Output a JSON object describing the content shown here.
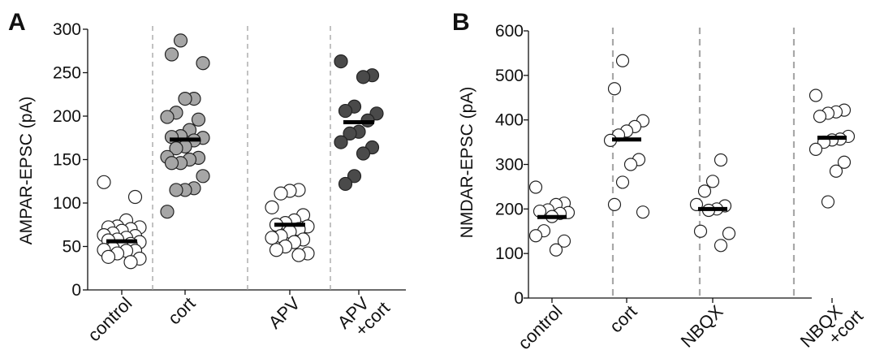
{
  "panels": [
    {
      "letter": "A",
      "chart_data": {
        "type": "scatter",
        "title": "",
        "xlabel": "",
        "ylabel": "AMPAR-EPSC (pA)",
        "ylim": [
          0,
          300
        ],
        "yticks": [
          0,
          50,
          100,
          150,
          200,
          250,
          300
        ],
        "categories": [
          [
            "control"
          ],
          [
            "cort"
          ],
          [
            "APV"
          ],
          [
            "APV",
            "+cort"
          ]
        ],
        "series": [
          {
            "category": "control",
            "fill": "#ffffff",
            "mean": 56,
            "values": [
              124,
              107,
              80,
              73,
              72,
              72,
              70,
              68,
              65,
              63,
              62,
              60,
              58,
              57,
              55,
              53,
              50,
              48,
              46,
              45,
              45,
              42,
              38,
              36,
              32
            ]
          },
          {
            "category": "cort",
            "fill": "#a6a6a6",
            "mean": 173,
            "values": [
              287,
              271,
              261,
              220,
              220,
              204,
              199,
              196,
              184,
              177,
              176,
              175,
              172,
              165,
              163,
              153,
              152,
              150,
              146,
              146,
              131,
              117,
              115,
              115,
              90
            ]
          },
          {
            "category": "APV",
            "fill": "#ffffff",
            "mean": 75,
            "values": [
              115,
              114,
              111,
              95,
              86,
              80,
              77,
              75,
              73,
              70,
              67,
              62,
              60,
              58,
              55,
              50,
              46,
              42,
              40
            ]
          },
          {
            "category": "APV +cort",
            "fill": "#4a4a4a",
            "mean": 193,
            "values": [
              263,
              247,
              245,
              211,
              206,
              203,
              195,
              182,
              180,
              170,
              164,
              157,
              131,
              122
            ]
          }
        ],
        "grid": false,
        "separators": "dashed"
      }
    },
    {
      "letter": "B",
      "chart_data": {
        "type": "scatter",
        "title": "",
        "xlabel": "",
        "ylabel": "NMDAR-EPSC  (pA)",
        "ylim": [
          0,
          600
        ],
        "yticks": [
          0,
          100,
          200,
          300,
          400,
          500,
          600
        ],
        "categories": [
          [
            "control"
          ],
          [
            "cort"
          ],
          [
            "NBQX"
          ],
          [
            "NBQX",
            "+cort"
          ]
        ],
        "series": [
          {
            "category": "control",
            "fill": "#ffffff",
            "mean": 182,
            "values": [
              249,
              213,
              210,
              198,
              195,
              192,
              190,
              183,
              151,
              140,
              128,
              108
            ]
          },
          {
            "category": "cort",
            "fill": "#ffffff",
            "mean": 356,
            "values": [
              533,
              470,
              398,
              385,
              375,
              366,
              354,
              311,
              300,
              260,
              210,
              193
            ]
          },
          {
            "category": "NBQX",
            "fill": "#ffffff",
            "mean": 200,
            "values": [
              310,
              262,
              240,
              210,
              207,
              200,
              197,
              150,
              145,
              118
            ]
          },
          {
            "category": "NBQX +cort",
            "fill": "#ffffff",
            "mean": 360,
            "values": [
              455,
              422,
              418,
              415,
              408,
              363,
              357,
              355,
              350,
              334,
              305,
              285,
              216
            ]
          }
        ],
        "grid": false,
        "separators": "dashed"
      }
    }
  ]
}
